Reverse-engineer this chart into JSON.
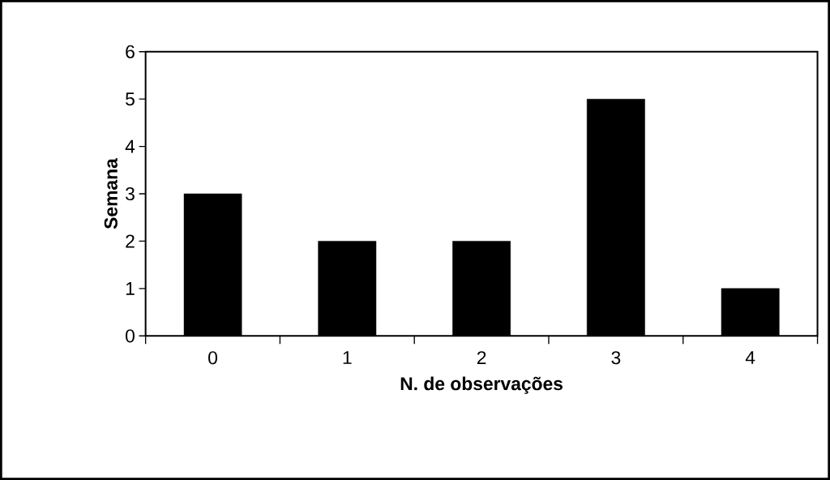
{
  "chart_data": {
    "type": "bar",
    "xlabel": "N. de observações",
    "ylabel": "Semana",
    "categories": [
      "0",
      "1",
      "2",
      "3",
      "4"
    ],
    "values": [
      3,
      2,
      2,
      5,
      1
    ],
    "color": "#000000",
    "ylim": [
      0,
      6
    ],
    "yticks": [
      0,
      1,
      2,
      3,
      4,
      5,
      6
    ],
    "grid": false
  }
}
